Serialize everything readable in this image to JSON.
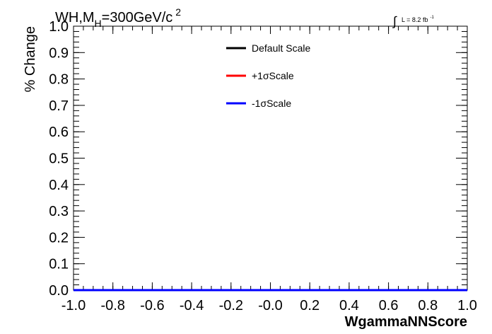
{
  "chart_data": {
    "type": "line",
    "title_parts": {
      "main": "WH,M",
      "sub": "H",
      "rest": "=300GeV/c",
      "sup": "2"
    },
    "luminosity": {
      "integral_symbol": "∫",
      "text": "L = 8.2 fb",
      "sup": "-1"
    },
    "xlabel": "WgammaNNScore",
    "ylabel": "% Change",
    "xlim": [
      -1.0,
      1.0
    ],
    "ylim": [
      0.0,
      1.0
    ],
    "x_ticks": [
      "-1.0",
      "-0.8",
      "-0.6",
      "-0.4",
      "-0.2",
      "-0.0",
      "0.2",
      "0.4",
      "0.6",
      "0.8",
      "1.0"
    ],
    "y_ticks": [
      "0.0",
      "0.1",
      "0.2",
      "0.3",
      "0.4",
      "0.5",
      "0.6",
      "0.7",
      "0.8",
      "0.9",
      "1.0"
    ],
    "legend_position": "top-right",
    "series": [
      {
        "name": "Default Scale",
        "color": "#000000",
        "x": [
          -1.0,
          1.0
        ],
        "y": [
          0.0,
          0.0
        ]
      },
      {
        "name": "+1σScale",
        "color": "#ff0000",
        "x": [
          -1.0,
          1.0
        ],
        "y": [
          0.0,
          0.0
        ]
      },
      {
        "name": "-1σScale",
        "color": "#0000ff",
        "x": [
          -1.0,
          1.0
        ],
        "y": [
          0.0,
          0.0
        ]
      }
    ],
    "grid": false
  }
}
